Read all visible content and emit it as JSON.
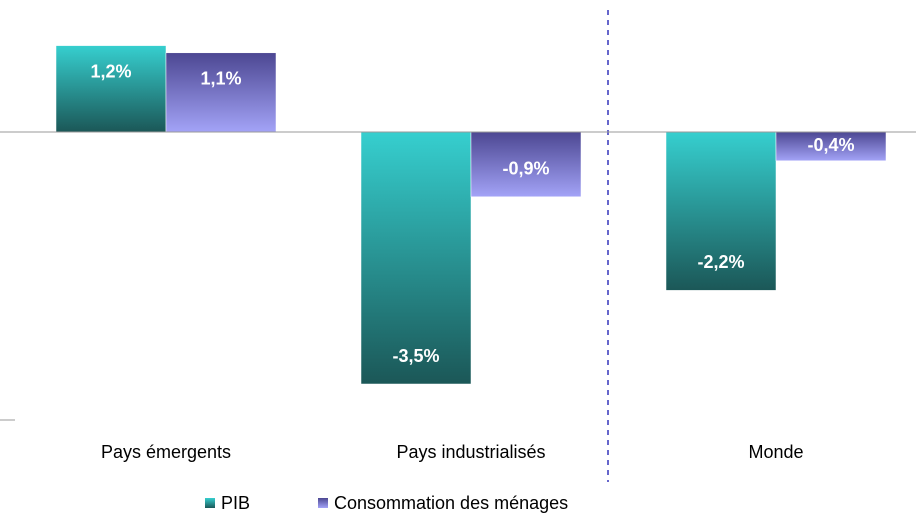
{
  "chart_data": {
    "type": "bar",
    "categories": [
      "Pays émergents",
      "Pays industrialisés",
      "Monde"
    ],
    "series": [
      {
        "name": "PIB",
        "color": "#2fb8b8",
        "gradient": [
          "#36cfcf",
          "#1b5757"
        ],
        "values": [
          1.2,
          -3.5,
          -2.2
        ],
        "value_labels": [
          "1,2%",
          "-3,5%",
          "-2,2%"
        ]
      },
      {
        "name": "Consommation des ménages",
        "color": "#7272d6",
        "gradient": [
          "#4c4792",
          "#a3a3f7"
        ],
        "values": [
          1.1,
          -0.9,
          -0.4
        ],
        "value_labels": [
          "1,1%",
          "-0,9%",
          "-0,4%"
        ]
      }
    ],
    "ylim": [
      -4,
      2
    ],
    "legend": "bottom"
  }
}
